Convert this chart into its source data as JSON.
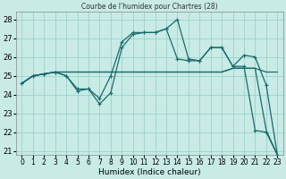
{
  "title": "Courbe de l'humidex pour Chartres (28)",
  "xlabel": "Humidex (Indice chaleur)",
  "xlim": [
    -0.5,
    23.5
  ],
  "ylim": [
    20.8,
    28.4
  ],
  "yticks": [
    21,
    22,
    23,
    24,
    25,
    26,
    27,
    28
  ],
  "xticks": [
    0,
    1,
    2,
    3,
    4,
    5,
    6,
    7,
    8,
    9,
    10,
    11,
    12,
    13,
    14,
    15,
    16,
    17,
    18,
    19,
    20,
    21,
    22,
    23
  ],
  "bg_color": "#c8ebe6",
  "grid_color": "#a0d0cc",
  "line_color": "#1a6b6b",
  "curves": [
    {
      "x": [
        0,
        1,
        2,
        3,
        4,
        5,
        6,
        7,
        8,
        9,
        10,
        11,
        12,
        13,
        14,
        15,
        16,
        17,
        18,
        19,
        20,
        21,
        22,
        23
      ],
      "y": [
        24.6,
        25.0,
        25.1,
        25.2,
        25.0,
        24.2,
        24.3,
        23.5,
        24.1,
        26.5,
        27.2,
        27.3,
        27.3,
        27.5,
        28.0,
        25.9,
        25.8,
        26.5,
        26.5,
        25.5,
        25.5,
        22.1,
        22.0,
        20.8
      ],
      "marker": true
    },
    {
      "x": [
        0,
        1,
        2,
        3,
        4,
        5,
        6,
        7,
        8,
        9,
        10,
        11,
        12,
        13,
        14,
        15,
        16,
        17,
        18,
        19,
        20,
        21,
        22,
        23
      ],
      "y": [
        24.6,
        25.0,
        25.1,
        25.2,
        25.0,
        24.3,
        24.3,
        23.8,
        25.0,
        26.8,
        27.3,
        27.3,
        27.3,
        27.5,
        25.9,
        25.8,
        25.8,
        26.5,
        26.5,
        25.5,
        26.1,
        26.0,
        24.5,
        20.8
      ],
      "marker": true
    },
    {
      "x": [
        0,
        1,
        2,
        3,
        4,
        5,
        6,
        7,
        8,
        9,
        10,
        11,
        12,
        13,
        14,
        15,
        16,
        17,
        18,
        19,
        20,
        21,
        22,
        23
      ],
      "y": [
        24.6,
        25.0,
        25.1,
        25.2,
        25.2,
        25.2,
        25.2,
        25.2,
        25.2,
        25.2,
        25.2,
        25.2,
        25.2,
        25.2,
        25.2,
        25.2,
        25.2,
        25.2,
        25.2,
        25.4,
        25.4,
        25.4,
        25.2,
        25.2
      ],
      "marker": false
    },
    {
      "x": [
        0,
        1,
        2,
        3,
        4,
        5,
        6,
        7,
        8,
        9,
        10,
        11,
        12,
        13,
        14,
        15,
        16,
        17,
        18,
        19,
        20,
        21,
        22,
        23
      ],
      "y": [
        24.6,
        25.0,
        25.1,
        25.2,
        25.2,
        25.2,
        25.2,
        25.2,
        25.2,
        25.2,
        25.2,
        25.2,
        25.2,
        25.2,
        25.2,
        25.2,
        25.2,
        25.2,
        25.2,
        25.4,
        25.4,
        25.4,
        22.1,
        20.8
      ],
      "marker": false
    }
  ]
}
